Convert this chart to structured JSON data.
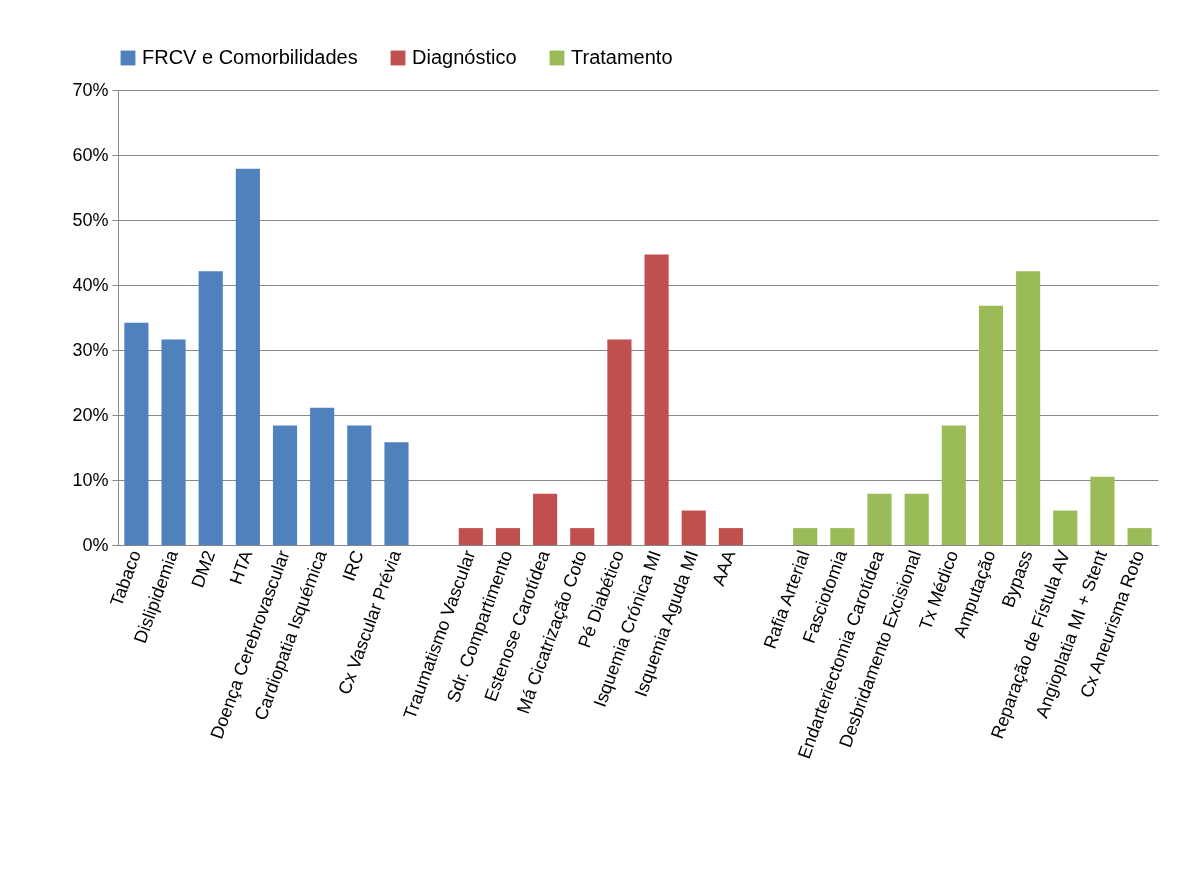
{
  "chart_data": {
    "type": "bar",
    "categories": [
      "Tabaco",
      "Dislipidemia",
      "DM2",
      "HTA",
      "Doença Cerebrovascular",
      "Cardiopatia Isquémica",
      "IRC",
      "Cx Vascular Prévia",
      null,
      "Traumatismo Vascular",
      "Sdr. Compartimento",
      "Estenose Carotídea",
      "Má Cicatrização Coto",
      "Pé Diabético",
      "Isquemia Crónica MI",
      "Isquemia Aguda MI",
      "AAA",
      null,
      "Rafia Arterial",
      "Fasciotomia",
      "Endarteriectomia Carotídea",
      "Desbridamento Excisional",
      "Tx Médico",
      "Amputação",
      "Bypass",
      "Reparação de Fístula AV",
      "Angioplatia MI + Stent",
      "Cx Aneurisma Roto"
    ],
    "series": [
      {
        "name": "FRCV e Comorbilidades",
        "color": "#4f81bd",
        "values": [
          34.2,
          31.6,
          42.1,
          57.9,
          18.4,
          21.1,
          18.4,
          15.8,
          null,
          null,
          null,
          null,
          null,
          null,
          null,
          null,
          null,
          null,
          null,
          null,
          null,
          null,
          null,
          null,
          null,
          null,
          null,
          null
        ]
      },
      {
        "name": "Diagnóstico",
        "color": "#c0504d",
        "values": [
          null,
          null,
          null,
          null,
          null,
          null,
          null,
          null,
          null,
          2.6,
          2.6,
          7.9,
          2.6,
          31.6,
          44.7,
          5.3,
          2.6,
          null,
          null,
          null,
          null,
          null,
          null,
          null,
          null,
          null,
          null,
          null
        ]
      },
      {
        "name": "Tratamento",
        "color": "#9bbb59",
        "values": [
          null,
          null,
          null,
          null,
          null,
          null,
          null,
          null,
          null,
          null,
          null,
          null,
          null,
          null,
          null,
          null,
          null,
          null,
          2.6,
          2.6,
          7.9,
          7.9,
          18.4,
          36.8,
          42.1,
          5.3,
          10.5,
          2.6
        ]
      }
    ],
    "ylim": [
      0,
      70
    ],
    "yticks": [
      {
        "value": 0,
        "label": "0%"
      },
      {
        "value": 10,
        "label": "10%"
      },
      {
        "value": 20,
        "label": "20%"
      },
      {
        "value": 30,
        "label": "30%"
      },
      {
        "value": 40,
        "label": "40%"
      },
      {
        "value": 50,
        "label": "50%"
      },
      {
        "value": 60,
        "label": "60%"
      },
      {
        "value": 70,
        "label": "70%"
      }
    ],
    "grid": "y",
    "legend": "top"
  }
}
